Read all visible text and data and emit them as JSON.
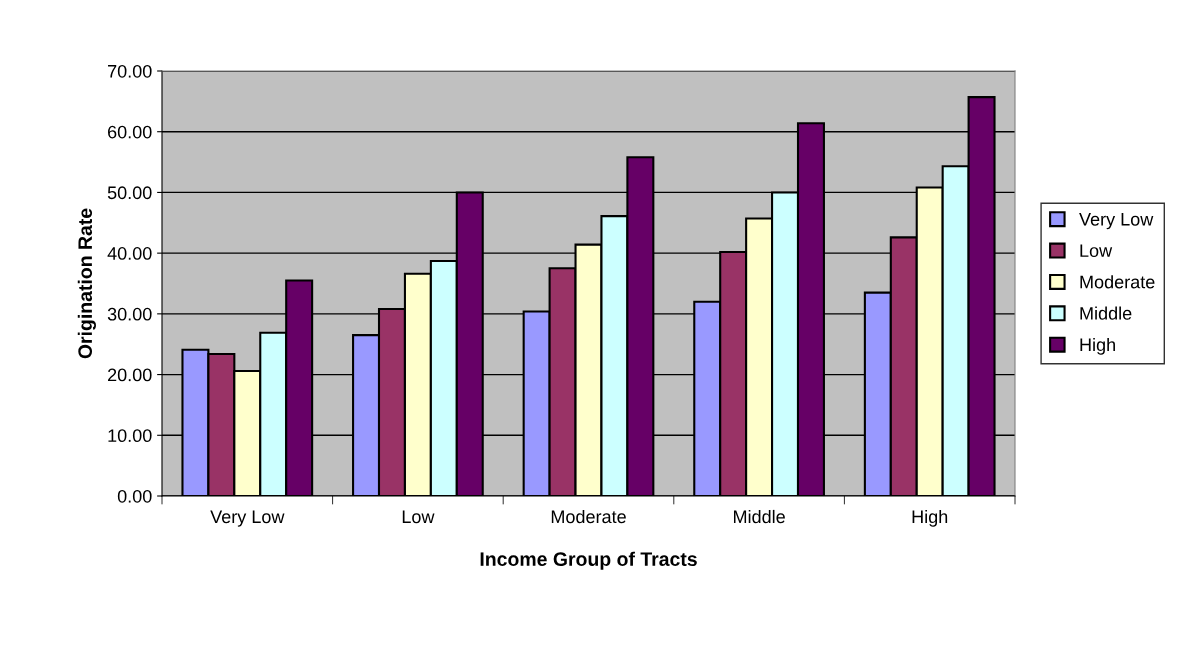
{
  "chart_data": {
    "type": "bar",
    "xlabel": "Income Group of Tracts",
    "ylabel": "Origination Rate",
    "categories": [
      "Very Low",
      "Low",
      "Moderate",
      "Middle",
      "High"
    ],
    "series": [
      {
        "name": "Very Low",
        "color": "#9999ff",
        "values": [
          24.1,
          26.5,
          30.4,
          32.0,
          33.5
        ]
      },
      {
        "name": "Low",
        "color": "#993366",
        "values": [
          23.4,
          30.8,
          37.5,
          40.2,
          42.6
        ]
      },
      {
        "name": "Moderate",
        "color": "#ffffcc",
        "values": [
          20.6,
          36.6,
          41.4,
          45.7,
          50.8
        ]
      },
      {
        "name": "Middle",
        "color": "#ccffff",
        "values": [
          26.9,
          38.7,
          46.1,
          50.0,
          54.3
        ]
      },
      {
        "name": "High",
        "color": "#660066",
        "values": [
          35.5,
          50.0,
          55.8,
          61.4,
          65.7
        ]
      }
    ],
    "ylim": [
      0,
      70
    ],
    "yticks": [
      {
        "value": 0,
        "label": "0.00"
      },
      {
        "value": 10,
        "label": "10.00"
      },
      {
        "value": 20,
        "label": "20.00"
      },
      {
        "value": 30,
        "label": "30.00"
      },
      {
        "value": 40,
        "label": "40.00"
      },
      {
        "value": 50,
        "label": "50.00"
      },
      {
        "value": 60,
        "label": "60.00"
      },
      {
        "value": 70,
        "label": "70.00"
      }
    ],
    "grid": "y",
    "legend": "right"
  }
}
